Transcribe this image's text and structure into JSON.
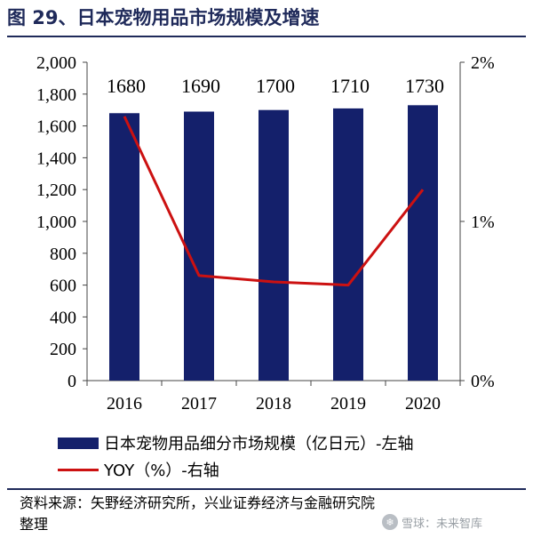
{
  "header": {
    "title": "图 29、日本宠物用品市场规模及增速"
  },
  "chart_data": {
    "type": "bar",
    "categories": [
      "2016",
      "2017",
      "2018",
      "2019",
      "2020"
    ],
    "series": [
      {
        "name": "日本宠物用品细分市场规模（亿日元）-左轴",
        "type": "bar",
        "axis": "left",
        "values": [
          1680,
          1690,
          1700,
          1710,
          1730
        ],
        "color": "#14206b"
      },
      {
        "name": "YOY（%）-右轴",
        "type": "line",
        "axis": "right",
        "values": [
          1.66,
          0.66,
          0.62,
          0.6,
          1.2
        ],
        "color": "#cc1111"
      }
    ],
    "data_labels": [
      "1680",
      "1690",
      "1700",
      "1710",
      "1730"
    ],
    "ylim_left": [
      0,
      2000
    ],
    "yticks_left": [
      "0",
      "200",
      "400",
      "600",
      "800",
      "1,000",
      "1,200",
      "1,400",
      "1,600",
      "1,800",
      "2,000"
    ],
    "ylim_right": [
      0,
      2
    ],
    "yticks_right": [
      "0%",
      "1%",
      "2%"
    ],
    "grid": false,
    "legend_position": "bottom"
  },
  "legend": {
    "bar_label": "日本宠物用品细分市场规模（亿日元）-左轴",
    "line_label": "YOY（%）-右轴"
  },
  "footer": {
    "source": "资料来源：矢野经济研究所，兴业证券经济与金融研究院整理",
    "watermark": "雪球：未来智库"
  }
}
